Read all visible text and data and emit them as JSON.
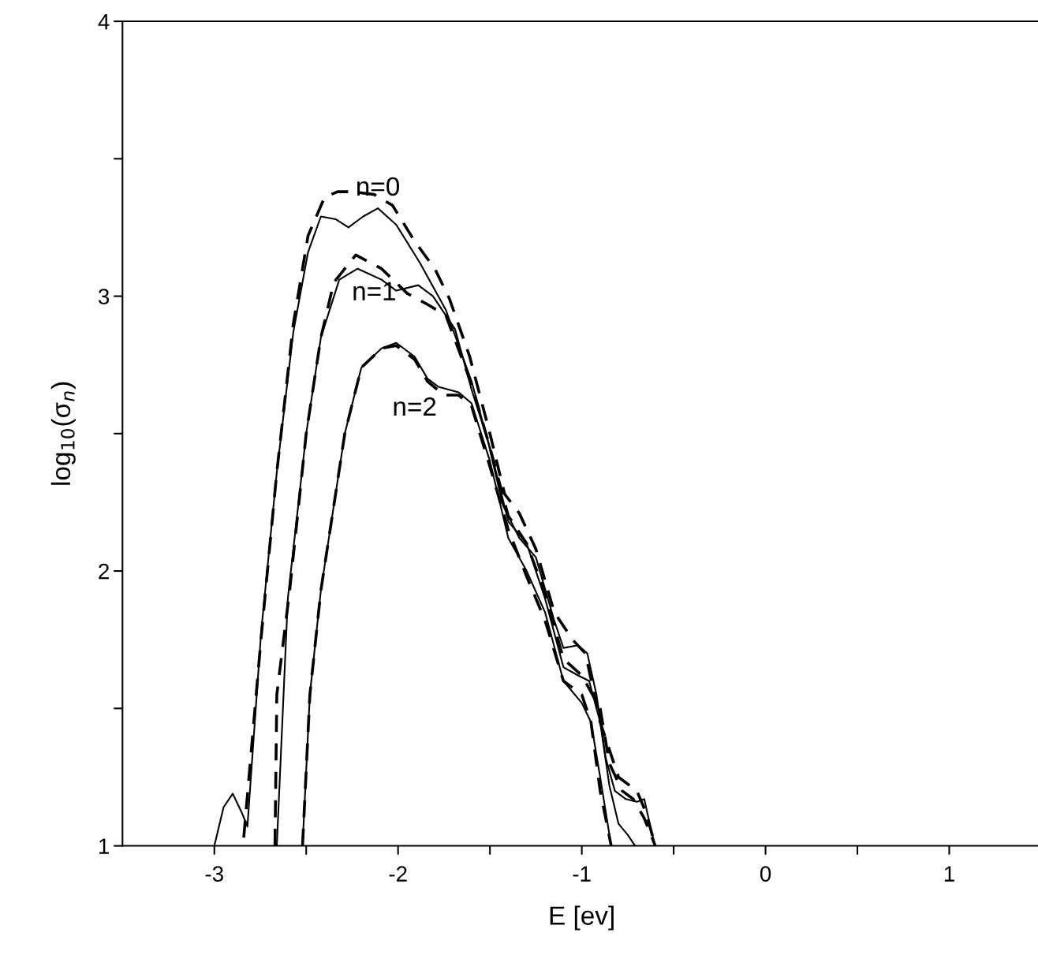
{
  "chart_data": {
    "type": "line",
    "xlabel": "E [ev]",
    "ylabel": "log$_{10}$(σ$_{n}$)",
    "xlim": [
      -3.5,
      1.5
    ],
    "ylim": [
      1,
      4
    ],
    "xticks": [
      -3,
      {
        "value": -2.5,
        "label": null
      },
      -2,
      {
        "value": -1.5,
        "label": null
      },
      -1,
      {
        "value": -0.5,
        "label": null
      },
      0,
      {
        "value": 0.5,
        "label": null
      },
      1
    ],
    "yticks": [
      1,
      {
        "value": 1.5,
        "label": null
      },
      2,
      {
        "value": 2.5,
        "label": null
      },
      3,
      {
        "value": 3.5,
        "label": null
      },
      4
    ],
    "grid": false,
    "legend": false,
    "marker": "none",
    "series": [
      {
        "color": "#000000",
        "line_style": "solid",
        "x": [
          -3.0,
          -2.95,
          -2.9,
          -2.85,
          -2.82,
          -2.745,
          -2.66,
          -2.57,
          -2.49,
          -2.42,
          -2.34,
          -2.27,
          -2.19,
          -2.11,
          -2.01,
          -1.88,
          -1.74,
          -1.6,
          -1.51,
          -1.43,
          -1.34,
          -1.25,
          -1.15,
          -1.1,
          -1.02,
          -0.97,
          -0.92,
          -0.87,
          -0.82,
          -0.76,
          -0.7,
          -0.66,
          -0.62,
          -0.6
        ],
        "values": [
          1.0,
          1.14,
          1.19,
          1.12,
          1.07,
          1.78,
          2.36,
          2.87,
          3.16,
          3.29,
          3.28,
          3.25,
          3.29,
          3.32,
          3.26,
          3.12,
          2.95,
          2.69,
          2.47,
          2.24,
          2.12,
          2.05,
          1.82,
          1.72,
          1.73,
          1.7,
          1.55,
          1.32,
          1.2,
          1.17,
          1.16,
          1.17,
          1.05,
          1.0
        ]
      },
      {
        "color": "#000000",
        "line_style": "dashed",
        "x": [
          -2.84,
          -2.745,
          -2.66,
          -2.57,
          -2.49,
          -2.4,
          -2.33,
          -2.25,
          -2.13,
          -2.03,
          -1.91,
          -1.8,
          -1.72,
          -1.61,
          -1.5,
          -1.42,
          -1.34,
          -1.25,
          -1.15,
          -1.05,
          -0.98,
          -0.9,
          -0.8,
          -0.7,
          -0.65,
          -0.6
        ],
        "values": [
          1.03,
          1.76,
          2.36,
          2.9,
          3.22,
          3.36,
          3.38,
          3.38,
          3.37,
          3.33,
          3.2,
          3.1,
          2.99,
          2.78,
          2.5,
          2.28,
          2.21,
          2.08,
          1.85,
          1.75,
          1.7,
          1.45,
          1.25,
          1.2,
          1.12,
          1.0
        ]
      },
      {
        "color": "#000000",
        "line_style": "solid",
        "x": [
          -2.66,
          -2.6,
          -2.5,
          -2.42,
          -2.32,
          -2.22,
          -2.09,
          -2.01,
          -1.89,
          -1.81,
          -1.69,
          -1.6,
          -1.5,
          -1.4,
          -1.3,
          -1.2,
          -1.1,
          -1.02,
          -0.96,
          -0.9,
          -0.85,
          -0.8,
          -0.75,
          -0.71
        ],
        "values": [
          1.0,
          1.9,
          2.5,
          2.85,
          3.06,
          3.1,
          3.06,
          3.02,
          3.04,
          3.0,
          2.88,
          2.66,
          2.45,
          2.18,
          2.1,
          1.9,
          1.65,
          1.62,
          1.6,
          1.45,
          1.22,
          1.08,
          1.04,
          1.0
        ]
      },
      {
        "color": "#000000",
        "line_style": "dashed",
        "x": [
          -2.67,
          -2.66,
          -2.59,
          -2.5,
          -2.42,
          -2.35,
          -2.23,
          -2.09,
          -1.95,
          -1.84,
          -1.74,
          -1.6,
          -1.5,
          -1.4,
          -1.3,
          -1.2,
          -1.1,
          -1.0,
          -0.9,
          -0.85,
          -0.78,
          -0.72,
          -0.66,
          -0.6
        ],
        "values": [
          1.0,
          1.55,
          1.93,
          2.5,
          2.85,
          3.05,
          3.15,
          3.1,
          3.01,
          2.97,
          2.93,
          2.68,
          2.45,
          2.2,
          2.1,
          1.92,
          1.68,
          1.62,
          1.5,
          1.3,
          1.2,
          1.17,
          1.1,
          1.0
        ]
      },
      {
        "color": "#000000",
        "line_style": "solid",
        "x": [
          -2.52,
          -2.48,
          -2.42,
          -2.29,
          -2.2,
          -2.09,
          -2.01,
          -1.91,
          -1.84,
          -1.78,
          -1.67,
          -1.6,
          -1.5,
          -1.4,
          -1.3,
          -1.2,
          -1.1,
          -1.0,
          -0.95,
          -0.9,
          -0.84
        ],
        "values": [
          1.0,
          1.55,
          1.93,
          2.5,
          2.74,
          2.81,
          2.83,
          2.78,
          2.7,
          2.67,
          2.65,
          2.61,
          2.4,
          2.12,
          2.0,
          1.85,
          1.6,
          1.52,
          1.45,
          1.25,
          1.0
        ]
      },
      {
        "color": "#000000",
        "line_style": "dashed",
        "x": [
          -2.52,
          -2.48,
          -2.42,
          -2.29,
          -2.2,
          -2.09,
          -2.01,
          -1.91,
          -1.84,
          -1.75,
          -1.67,
          -1.6,
          -1.5,
          -1.4,
          -1.3,
          -1.2,
          -1.1,
          -1.0,
          -0.95,
          -0.9,
          -0.84
        ],
        "values": [
          1.0,
          1.55,
          1.93,
          2.5,
          2.74,
          2.81,
          2.82,
          2.77,
          2.69,
          2.64,
          2.64,
          2.6,
          2.38,
          2.15,
          1.98,
          1.82,
          1.6,
          1.55,
          1.45,
          1.2,
          1.0
        ]
      }
    ],
    "annotations": [
      "n=0",
      "n=1",
      "n=2"
    ]
  }
}
